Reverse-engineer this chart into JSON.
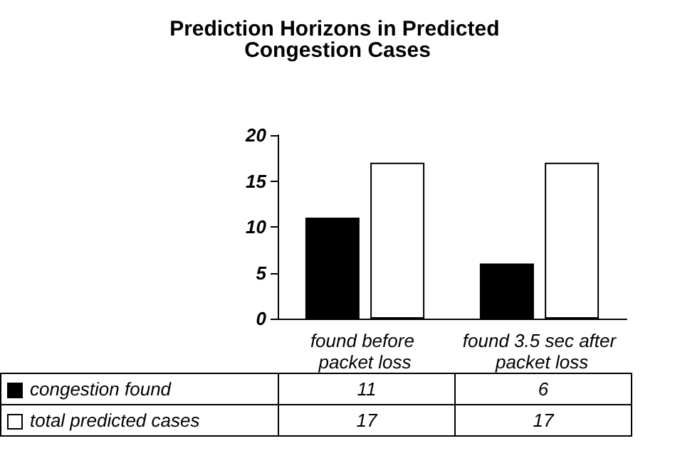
{
  "chart_data": {
    "type": "bar",
    "title": "Prediction Horizons in Predicted Congestion Cases",
    "categories": [
      "found before packet loss",
      "found 3.5 sec after packet loss"
    ],
    "series": [
      {
        "name": "congestion found",
        "color": "#000000",
        "values": [
          11,
          6
        ]
      },
      {
        "name": "total predicted cases",
        "color": "#ffffff",
        "values": [
          17,
          17
        ]
      }
    ],
    "ylim": [
      0,
      20
    ],
    "yticks": [
      0,
      5,
      10,
      15,
      20
    ],
    "grid": false,
    "legend": "bottom",
    "data_labels": true
  }
}
